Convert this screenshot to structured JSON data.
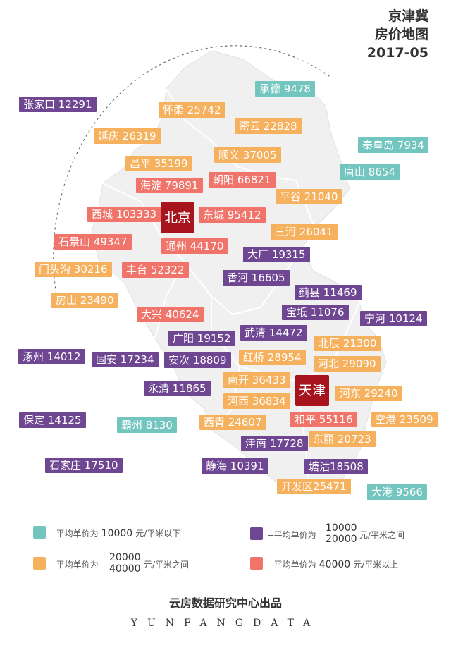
{
  "header": {
    "line1": "京津冀",
    "line2": "房价地图",
    "line3": "2017-05"
  },
  "cities": {
    "beijing": "北京",
    "tianjin": "天津"
  },
  "regions": [
    {
      "name": "承德",
      "price": "9478",
      "tier": "teal"
    },
    {
      "name": "张家口",
      "price": "12291",
      "tier": "purple"
    },
    {
      "name": "怀柔",
      "price": "25742",
      "tier": "orange"
    },
    {
      "name": "密云",
      "price": "22828",
      "tier": "orange"
    },
    {
      "name": "延庆",
      "price": "26319",
      "tier": "orange"
    },
    {
      "name": "秦皇岛",
      "price": "7934",
      "tier": "teal"
    },
    {
      "name": "顺义",
      "price": "37005",
      "tier": "orange"
    },
    {
      "name": "昌平",
      "price": "35199",
      "tier": "orange"
    },
    {
      "name": "唐山",
      "price": "8654",
      "tier": "teal"
    },
    {
      "name": "海淀",
      "price": "79891",
      "tier": "red"
    },
    {
      "name": "朝阳",
      "price": "66821",
      "tier": "red"
    },
    {
      "name": "平谷",
      "price": "21040",
      "tier": "orange"
    },
    {
      "name": "西城",
      "price": "103333",
      "tier": "red"
    },
    {
      "name": "东城",
      "price": "95412",
      "tier": "red"
    },
    {
      "name": "三河",
      "price": "26041",
      "tier": "orange"
    },
    {
      "name": "石景山",
      "price": "49347",
      "tier": "red"
    },
    {
      "name": "通州",
      "price": "44170",
      "tier": "red"
    },
    {
      "name": "大厂",
      "price": "19315",
      "tier": "purple"
    },
    {
      "name": "门头沟",
      "price": "30216",
      "tier": "orange"
    },
    {
      "name": "丰台",
      "price": "52322",
      "tier": "red"
    },
    {
      "name": "香河",
      "price": "16605",
      "tier": "purple"
    },
    {
      "name": "蓟县",
      "price": "11469",
      "tier": "purple"
    },
    {
      "name": "房山",
      "price": "23490",
      "tier": "orange"
    },
    {
      "name": "大兴",
      "price": "40624",
      "tier": "red"
    },
    {
      "name": "宝坻",
      "price": "11076",
      "tier": "purple"
    },
    {
      "name": "宁河",
      "price": "10124",
      "tier": "purple"
    },
    {
      "name": "广阳",
      "price": "19152",
      "tier": "purple"
    },
    {
      "name": "武清",
      "price": "14472",
      "tier": "purple"
    },
    {
      "name": "北辰",
      "price": "21300",
      "tier": "orange"
    },
    {
      "name": "涿州",
      "price": "14012",
      "tier": "purple"
    },
    {
      "name": "固安",
      "price": "17234",
      "tier": "purple"
    },
    {
      "name": "安次",
      "price": "18809",
      "tier": "purple"
    },
    {
      "name": "红桥",
      "price": "28954",
      "tier": "orange"
    },
    {
      "name": "河北",
      "price": "29090",
      "tier": "orange"
    },
    {
      "name": "南开",
      "price": "36433",
      "tier": "orange"
    },
    {
      "name": "永清",
      "price": "11865",
      "tier": "purple"
    },
    {
      "name": "河东",
      "price": "29240",
      "tier": "orange"
    },
    {
      "name": "河西",
      "price": "36834",
      "tier": "orange"
    },
    {
      "name": "保定",
      "price": "14125",
      "tier": "purple"
    },
    {
      "name": "霸州",
      "price": "8130",
      "tier": "teal"
    },
    {
      "name": "西青",
      "price": "24607",
      "tier": "orange"
    },
    {
      "name": "和平",
      "price": "55116",
      "tier": "red"
    },
    {
      "name": "空港",
      "price": "23509",
      "tier": "orange"
    },
    {
      "name": "东丽",
      "price": "20723",
      "tier": "orange"
    },
    {
      "name": "津南",
      "price": "17728",
      "tier": "purple"
    },
    {
      "name": "石家庄",
      "price": "17510",
      "tier": "purple"
    },
    {
      "name": "静海",
      "price": "10391",
      "tier": "purple"
    },
    {
      "name": "塘沽",
      "price": "18508",
      "tier": "purple"
    },
    {
      "name": "开发区",
      "price": "25471",
      "tier": "orange"
    },
    {
      "name": "大港",
      "price": "9566",
      "tier": "teal"
    }
  ],
  "legend": {
    "teal": {
      "prefix": "--平均单价为",
      "a": "10000",
      "unit": "元/平米以下",
      "color": "#73c5c0"
    },
    "purple": {
      "prefix": "--平均单价为",
      "a": "10000",
      "b": "20000",
      "unit": "元/平米之间",
      "color": "#6e4692"
    },
    "orange": {
      "prefix": "--平均单价为",
      "a": "20000",
      "b": "40000",
      "unit": "元/平米之间",
      "color": "#f6b15e"
    },
    "red": {
      "prefix": "--平均单价为",
      "a": "40000",
      "unit": "元/平米以上",
      "color": "#f0746a"
    }
  },
  "footer": {
    "line1": "云房数据研究中心出品",
    "line2": "YUNFANGDATA"
  }
}
